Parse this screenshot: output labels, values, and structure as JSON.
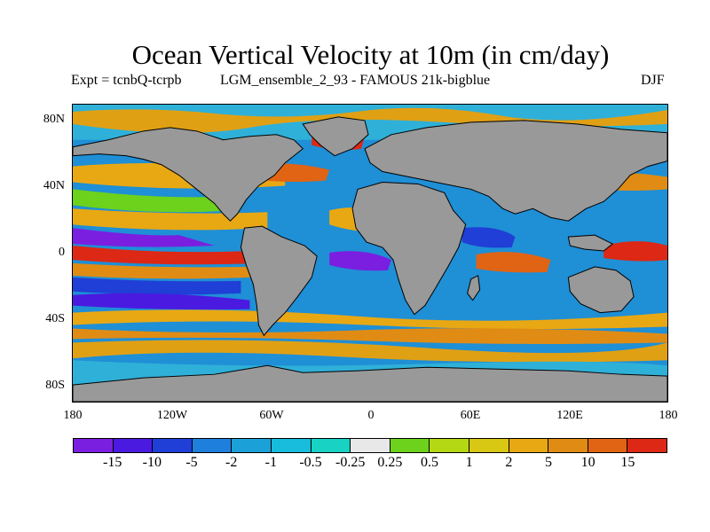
{
  "title": "Ocean Vertical Velocity at 10m (in cm/day)",
  "subtitle_left": "Expt = tcnbQ-tcrpb",
  "subtitle_center": "LGM_ensemble_2_93 - FAMOUS 21k-bigblue",
  "season": "DJF",
  "axes": {
    "lat_labels": [
      "80N",
      "40N",
      "0",
      "40S",
      "80S"
    ],
    "lon_labels": [
      "180",
      "120W",
      "60W",
      "0",
      "60E",
      "120E",
      "180"
    ]
  },
  "colors": {
    "land": "#999999",
    "ocean_base": "#1f8fd6",
    "coast": "#000000"
  },
  "colorbar": {
    "colors": [
      "#7a1fe0",
      "#4a1ae0",
      "#1f3fd6",
      "#1f7fdc",
      "#1ca0d8",
      "#18bcdc",
      "#18d2c4",
      "#e8e8e8",
      "#6cd21c",
      "#b4d814",
      "#d8c814",
      "#e8a814",
      "#e08c14",
      "#e06414",
      "#dc2814"
    ],
    "labels": [
      "-15",
      "-10",
      "-5",
      "-2",
      "-1",
      "-0.5",
      "-0.25",
      "0.25",
      "0.5",
      "1",
      "2",
      "5",
      "10",
      "15"
    ]
  }
}
